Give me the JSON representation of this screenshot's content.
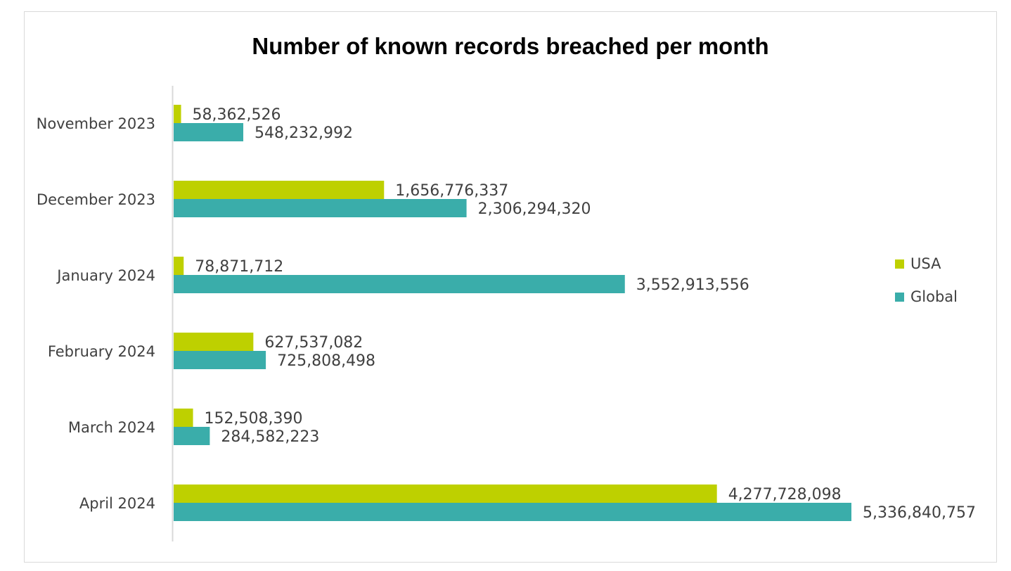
{
  "chart_data": {
    "type": "bar",
    "orientation": "horizontal",
    "title": "Number of known records breached per month",
    "categories": [
      "November 2023",
      "December 2023",
      "January 2024",
      "February 2024",
      "March 2024",
      "April 2024"
    ],
    "series": [
      {
        "name": "USA",
        "color": "#bed000",
        "values": [
          58362526,
          1656776337,
          78871712,
          627537082,
          152508390,
          4277728098
        ],
        "labels": [
          "58,362,526",
          "1,656,776,337",
          "78,871,712",
          "627,537,082",
          "152,508,390",
          "4,277,728,098"
        ]
      },
      {
        "name": "Global",
        "color": "#3aadaa",
        "values": [
          548232992,
          2306294320,
          3552913556,
          725808498,
          284582223,
          5336840757
        ],
        "labels": [
          "548,232,992",
          "2,306,294,320",
          "3,552,913,556",
          "725,808,498",
          "284,582,223",
          "5,336,840,757"
        ]
      }
    ],
    "xlim": [
      0,
      5336840757
    ],
    "legend_position": "right",
    "grid": false
  }
}
